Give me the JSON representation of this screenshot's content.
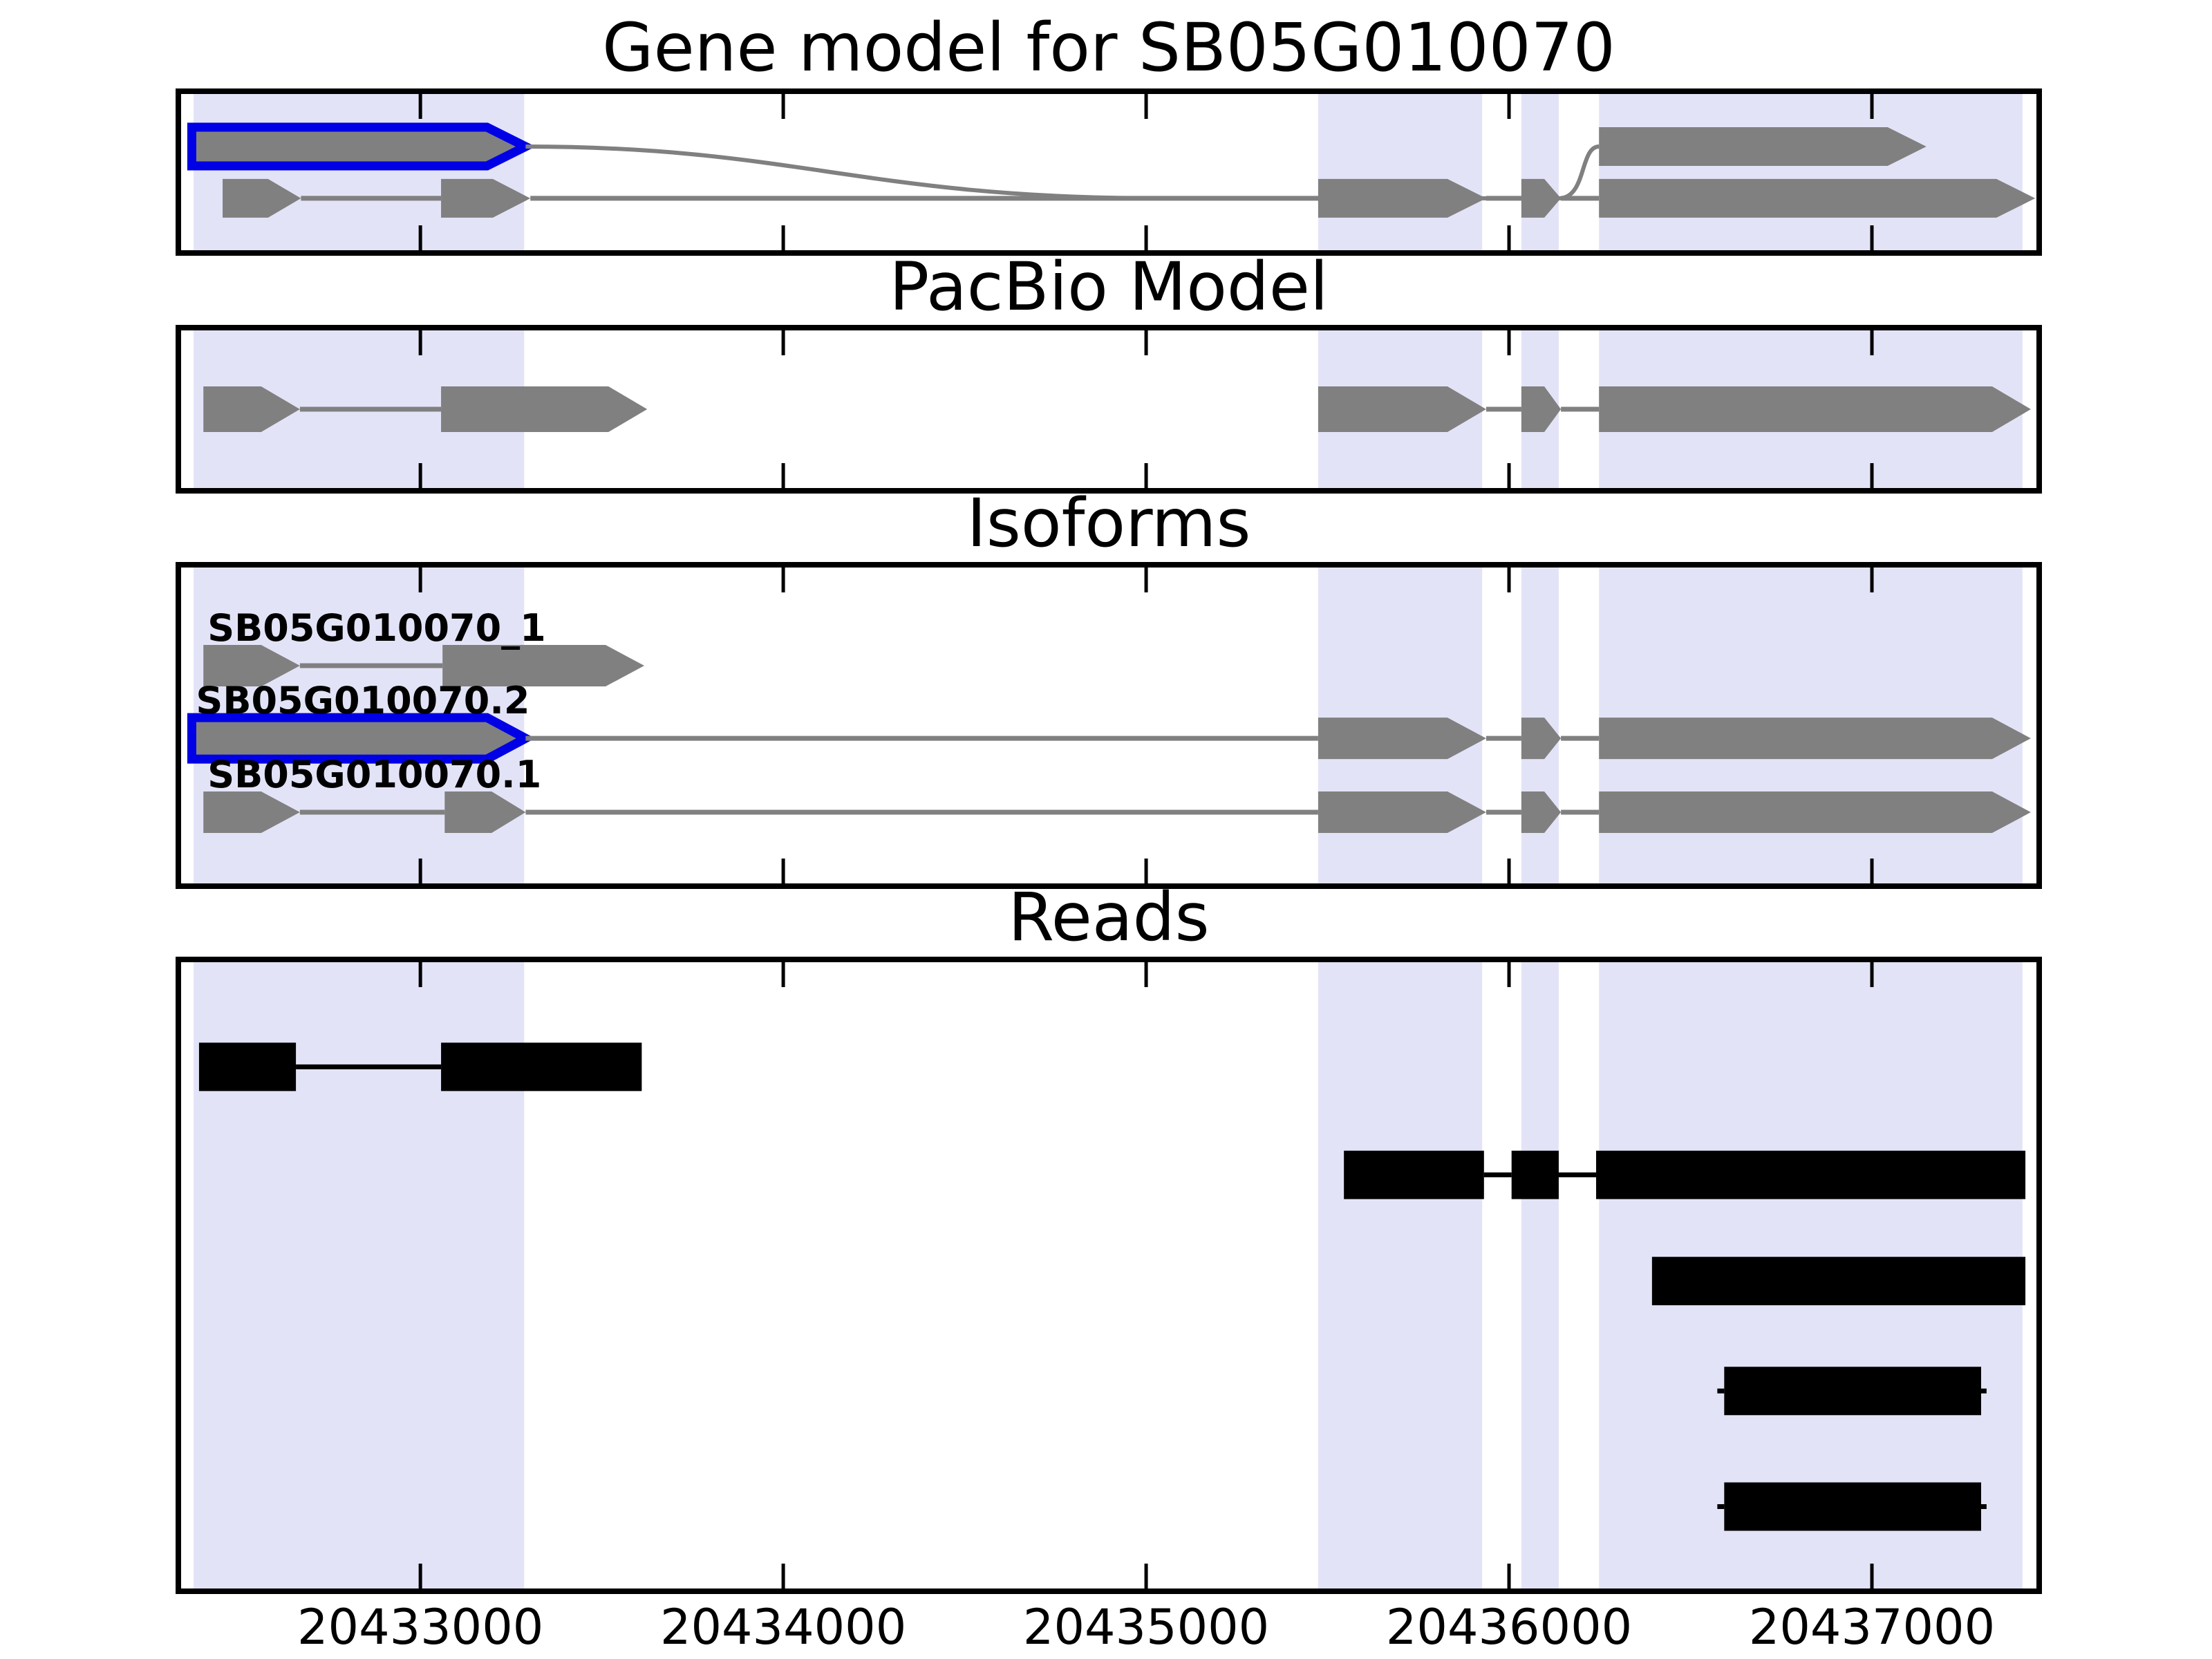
{
  "figure_title": "Gene model for SB05G010070",
  "colors": {
    "background": "#ffffff",
    "highlight_band": "#e3e3f8",
    "feature_gray": "#808080",
    "selected_blue": "#0000e6",
    "read_black": "#000000",
    "axis_black": "#000000"
  },
  "chart_data": {
    "type": "gene-model-tracks",
    "title": "Gene model for SB05G010070",
    "x_axis": {
      "min": 20432333,
      "max": 20437461,
      "ticks": [
        20433000,
        20434000,
        20435000,
        20436000,
        20437000
      ],
      "tick_labels": [
        "20433000",
        "20434000",
        "20435000",
        "20436000",
        "20437000"
      ]
    },
    "highlight_regions": [
      {
        "start": 20432375,
        "end": 20433286
      },
      {
        "start": 20435474,
        "end": 20435926
      },
      {
        "start": 20436034,
        "end": 20436137
      },
      {
        "start": 20436248,
        "end": 20437415
      }
    ],
    "panels": [
      {
        "name": "gene_model",
        "title": "Gene model for SB05G010070",
        "rows": [
          {
            "y": 0.342,
            "color": "gray",
            "features": [
              {
                "kind": "exon",
                "start": 20432370,
                "end": 20433290,
                "highlighted": true
              },
              {
                "kind": "curve",
                "start": 20433290,
                "end": 20436248,
                "dip": 0.662
              },
              {
                "kind": "exon",
                "start": 20436248,
                "end": 20437150
              }
            ]
          },
          {
            "y": 0.662,
            "color": "gray",
            "features": [
              {
                "kind": "exon",
                "start": 20432455,
                "end": 20432671
              },
              {
                "kind": "line",
                "start": 20432671,
                "end": 20433057
              },
              {
                "kind": "exon",
                "start": 20433057,
                "end": 20433303
              },
              {
                "kind": "line",
                "start": 20433303,
                "end": 20435474
              },
              {
                "kind": "exon",
                "start": 20435474,
                "end": 20435937
              },
              {
                "kind": "line",
                "start": 20435937,
                "end": 20436034
              },
              {
                "kind": "exon",
                "start": 20436034,
                "end": 20436143
              },
              {
                "kind": "line",
                "start": 20436143,
                "end": 20436248
              },
              {
                "kind": "exon",
                "start": 20436248,
                "end": 20437450
              }
            ]
          }
        ]
      },
      {
        "name": "pacbio_model",
        "title": "PacBio Model",
        "rows": [
          {
            "y": 0.5,
            "color": "gray",
            "features": [
              {
                "kind": "exon",
                "start": 20432402,
                "end": 20432668
              },
              {
                "kind": "line",
                "start": 20432668,
                "end": 20433057
              },
              {
                "kind": "exon",
                "start": 20433057,
                "end": 20433625
              },
              {
                "kind": "exon",
                "start": 20435474,
                "end": 20435937
              },
              {
                "kind": "line",
                "start": 20435937,
                "end": 20436034
              },
              {
                "kind": "exon",
                "start": 20436034,
                "end": 20436143
              },
              {
                "kind": "line",
                "start": 20436143,
                "end": 20436248
              },
              {
                "kind": "exon",
                "start": 20436248,
                "end": 20437438
              }
            ]
          }
        ]
      },
      {
        "name": "isoforms",
        "title": "Isoforms",
        "rows": [
          {
            "y": 0.314,
            "color": "gray",
            "label": "SB05G010070_1",
            "features": [
              {
                "kind": "exon",
                "start": 20432402,
                "end": 20432668
              },
              {
                "kind": "line",
                "start": 20432668,
                "end": 20433061
              },
              {
                "kind": "exon",
                "start": 20433061,
                "end": 20433617
              }
            ]
          },
          {
            "y": 0.54,
            "color": "gray",
            "label": "SB05G010070.2",
            "features": [
              {
                "kind": "exon",
                "start": 20432370,
                "end": 20433290,
                "highlighted": true
              },
              {
                "kind": "line",
                "start": 20433290,
                "end": 20435474
              },
              {
                "kind": "exon",
                "start": 20435474,
                "end": 20435937
              },
              {
                "kind": "line",
                "start": 20435937,
                "end": 20436034
              },
              {
                "kind": "exon",
                "start": 20436034,
                "end": 20436143
              },
              {
                "kind": "line",
                "start": 20436143,
                "end": 20436248
              },
              {
                "kind": "exon",
                "start": 20436248,
                "end": 20437438
              }
            ]
          },
          {
            "y": 0.77,
            "color": "gray",
            "label": "SB05G010070.1",
            "features": [
              {
                "kind": "exon",
                "start": 20432402,
                "end": 20432668
              },
              {
                "kind": "line",
                "start": 20432668,
                "end": 20433067
              },
              {
                "kind": "exon",
                "start": 20433067,
                "end": 20433290
              },
              {
                "kind": "line",
                "start": 20433290,
                "end": 20435474
              },
              {
                "kind": "exon",
                "start": 20435474,
                "end": 20435937
              },
              {
                "kind": "line",
                "start": 20435937,
                "end": 20436034
              },
              {
                "kind": "exon",
                "start": 20436034,
                "end": 20436143
              },
              {
                "kind": "line",
                "start": 20436143,
                "end": 20436248
              },
              {
                "kind": "exon",
                "start": 20436248,
                "end": 20437438
              }
            ]
          }
        ]
      },
      {
        "name": "reads",
        "title": "Reads",
        "rows": [
          {
            "y": 0.17,
            "color": "black",
            "features": [
              {
                "kind": "rect",
                "start": 20432390,
                "end": 20432657
              },
              {
                "kind": "line",
                "start": 20432657,
                "end": 20433057
              },
              {
                "kind": "rect",
                "start": 20433057,
                "end": 20433610
              }
            ]
          },
          {
            "y": 0.341,
            "color": "black",
            "features": [
              {
                "kind": "rect",
                "start": 20435545,
                "end": 20435931
              },
              {
                "kind": "line",
                "start": 20435931,
                "end": 20436007
              },
              {
                "kind": "rect",
                "start": 20436007,
                "end": 20436137
              },
              {
                "kind": "line",
                "start": 20436137,
                "end": 20436240
              },
              {
                "kind": "rect",
                "start": 20436240,
                "end": 20437423
              }
            ]
          },
          {
            "y": 0.509,
            "color": "black",
            "features": [
              {
                "kind": "rect",
                "start": 20436394,
                "end": 20437423
              }
            ]
          },
          {
            "y": 0.683,
            "color": "black",
            "features": [
              {
                "kind": "line",
                "start": 20436574,
                "end": 20436593
              },
              {
                "kind": "rect",
                "start": 20436593,
                "end": 20437301
              },
              {
                "kind": "line",
                "start": 20437301,
                "end": 20437316
              }
            ]
          },
          {
            "y": 0.866,
            "color": "black",
            "features": [
              {
                "kind": "line",
                "start": 20436574,
                "end": 20436593
              },
              {
                "kind": "rect",
                "start": 20436593,
                "end": 20437301
              },
              {
                "kind": "line",
                "start": 20437301,
                "end": 20437316
              }
            ]
          }
        ]
      }
    ]
  }
}
